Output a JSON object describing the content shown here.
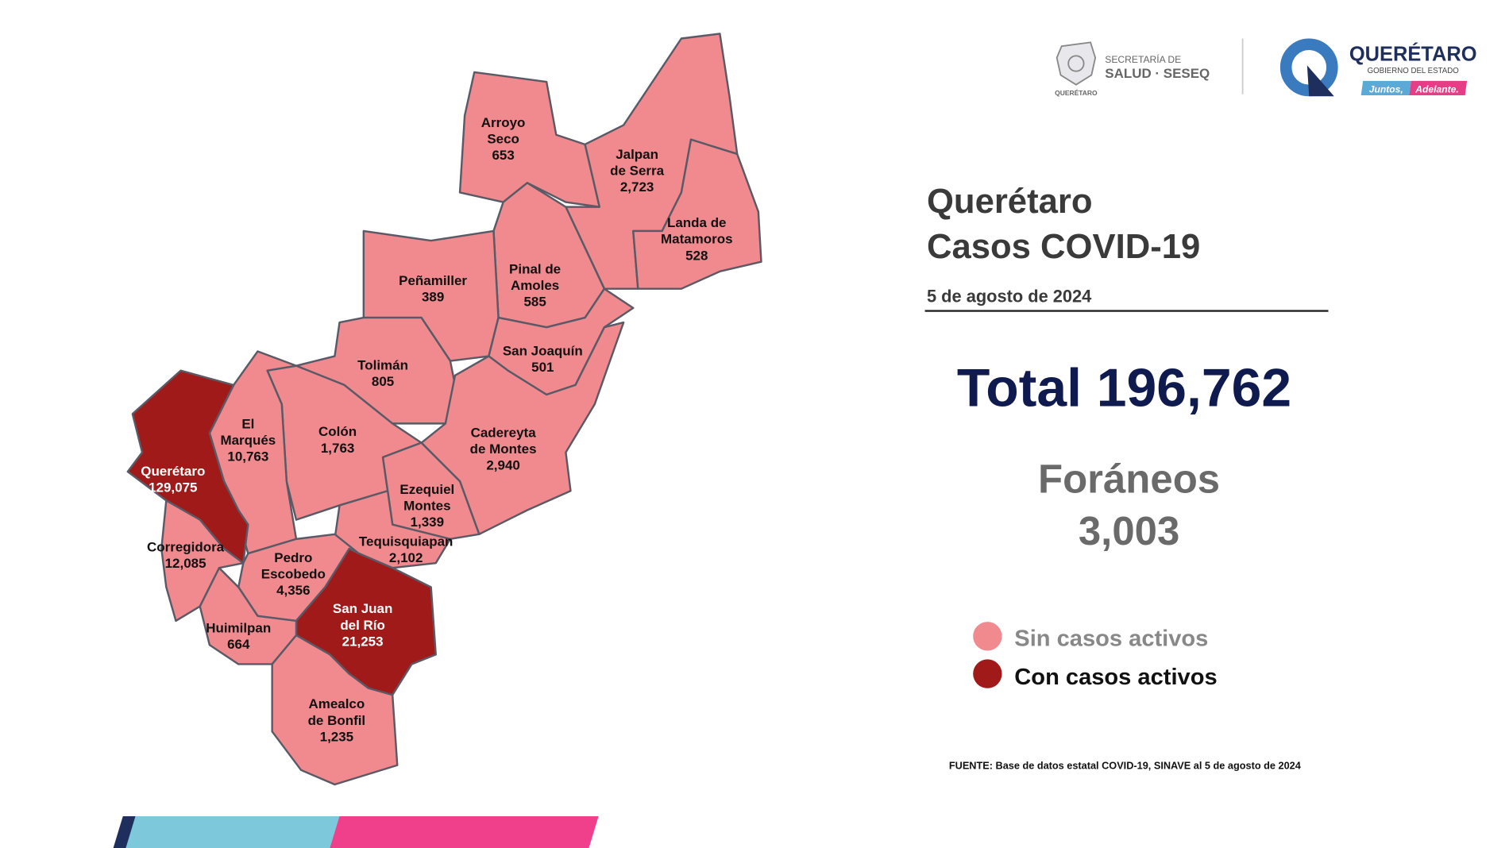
{
  "header": {
    "seseq_logo": {
      "line1": "SECRETARÍA DE",
      "line2": "SALUD · SESEQ",
      "sub": "QUERÉTARO"
    },
    "gov_logo": {
      "title": "QUERÉTARO",
      "subtitle": "GOBIERNO DEL ESTADO",
      "slogan_a": "Juntos,",
      "slogan_b": "Adelante."
    }
  },
  "title": {
    "line1": "Querétaro",
    "line2": "Casos COVID-19",
    "date": "5 de agosto de 2024"
  },
  "total": "Total 196,762",
  "foraneos": {
    "label": "Foráneos",
    "value": "3,003"
  },
  "legend": [
    {
      "label": "Sin casos activos",
      "color": "#f08a8f"
    },
    {
      "label": "Con casos activos",
      "color": "#a11a1a"
    }
  ],
  "source": "FUENTE: Base de datos estatal  COVID-19,  SINAVE  al 5 de agosto de 2024",
  "municipalities": [
    {
      "name": [
        "Arroyo",
        "Seco"
      ],
      "cases": "653",
      "active": false
    },
    {
      "name": [
        "Jalpan",
        "de Serra"
      ],
      "cases": "2,723",
      "active": false
    },
    {
      "name": [
        "Landa de",
        "Matamoros"
      ],
      "cases": "528",
      "active": false
    },
    {
      "name": [
        "Pinal de",
        "Amoles"
      ],
      "cases": "585",
      "active": false
    },
    {
      "name": [
        "Peñamiller"
      ],
      "cases": "389",
      "active": false
    },
    {
      "name": [
        "San Joaquín"
      ],
      "cases": "501",
      "active": false
    },
    {
      "name": [
        "Tolimán"
      ],
      "cases": "805",
      "active": false
    },
    {
      "name": [
        "Cadereyta",
        "de Montes"
      ],
      "cases": "2,940",
      "active": false
    },
    {
      "name": [
        "Colón"
      ],
      "cases": "1,763",
      "active": false
    },
    {
      "name": [
        "El",
        "Marqués"
      ],
      "cases": "10,763",
      "active": false
    },
    {
      "name": [
        "Querétaro"
      ],
      "cases": "129,075",
      "active": true
    },
    {
      "name": [
        "Corregidora"
      ],
      "cases": "12,085",
      "active": false
    },
    {
      "name": [
        "Ezequiel",
        "Montes"
      ],
      "cases": "1,339",
      "active": false
    },
    {
      "name": [
        "Tequisquiapan"
      ],
      "cases": "2,102",
      "active": false
    },
    {
      "name": [
        "Pedro",
        "Escobedo"
      ],
      "cases": "4,356",
      "active": false
    },
    {
      "name": [
        "San Juan",
        "del Río"
      ],
      "cases": "21,253",
      "active": true
    },
    {
      "name": [
        "Huimilpan"
      ],
      "cases": "664",
      "active": false
    },
    {
      "name": [
        "Amealco",
        "de Bonfil"
      ],
      "cases": "1,235",
      "active": false
    }
  ]
}
